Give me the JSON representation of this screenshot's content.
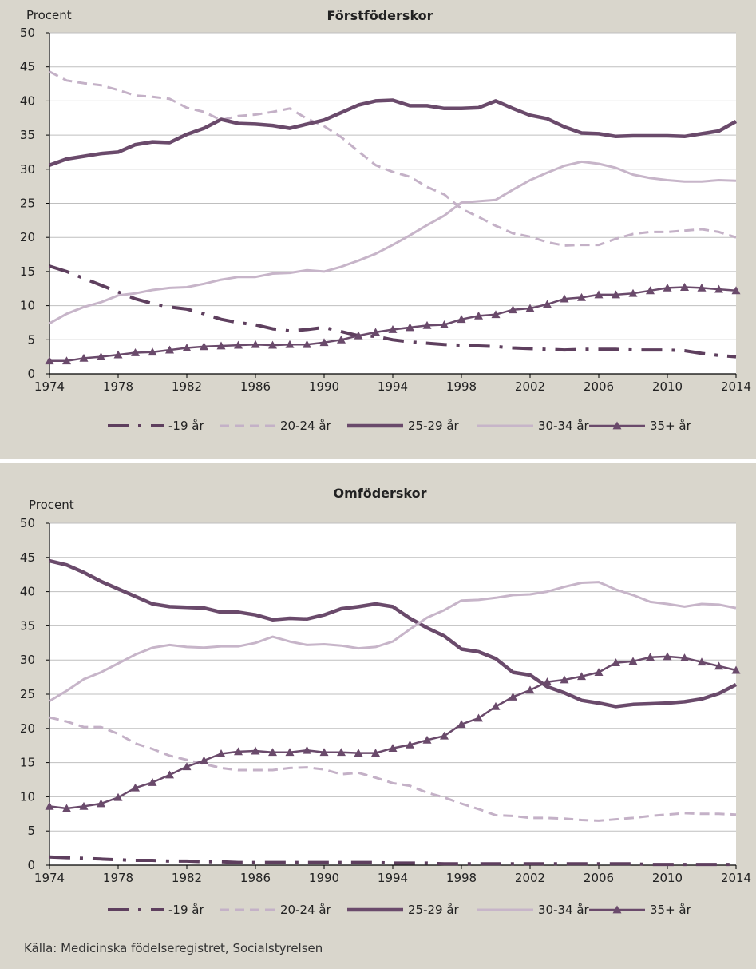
{
  "colors": {
    "s19": "#5e3f5e",
    "s2024": "#c4b1c7",
    "s2529": "#6a4a6b",
    "s3034": "#c7b5c9",
    "s35": "#6a4a6b",
    "grid": "#bfbfbf",
    "axis": "#000000",
    "plot_bg": "#ffffff",
    "panel_bg": "#d9d6cc"
  },
  "source": "Källa: Medicinska födelseregistret, Socialstyrelsen",
  "chart_data": [
    {
      "type": "line",
      "title": "Förstföderskor",
      "ylabel": "Procent",
      "xlim": [
        1974,
        2014
      ],
      "ylim": [
        0,
        50
      ],
      "x_ticks": [
        "1974",
        "1978",
        "1982",
        "1986",
        "1990",
        "1994",
        "1998",
        "2002",
        "2006",
        "2010",
        "2014"
      ],
      "y_ticks": [
        "0",
        "5",
        "10",
        "15",
        "20",
        "25",
        "30",
        "35",
        "40",
        "45",
        "50"
      ],
      "grid": true,
      "legend_position": "bottom",
      "x": [
        1974,
        1975,
        1976,
        1977,
        1978,
        1979,
        1980,
        1981,
        1982,
        1983,
        1984,
        1985,
        1986,
        1987,
        1988,
        1989,
        1990,
        1991,
        1992,
        1993,
        1994,
        1995,
        1996,
        1997,
        1998,
        1999,
        2000,
        2001,
        2002,
        2003,
        2004,
        2005,
        2006,
        2007,
        2008,
        2009,
        2010,
        2011,
        2012,
        2013,
        2014
      ],
      "series": [
        {
          "name": "-19 år",
          "style": "dashdot",
          "color_key": "s19",
          "values": [
            15.8,
            15.0,
            14.0,
            13.0,
            12.0,
            11.0,
            10.3,
            9.8,
            9.5,
            8.8,
            8.0,
            7.5,
            7.2,
            6.6,
            6.3,
            6.5,
            6.8,
            6.2,
            5.6,
            5.5,
            5.0,
            4.7,
            4.5,
            4.3,
            4.2,
            4.1,
            4.0,
            3.8,
            3.7,
            3.6,
            3.5,
            3.6,
            3.6,
            3.6,
            3.5,
            3.5,
            3.5,
            3.4,
            3.0,
            2.7,
            2.5
          ]
        },
        {
          "name": "20-24 år",
          "style": "dashed",
          "color_key": "s2024",
          "values": [
            44.3,
            43.0,
            42.6,
            42.3,
            41.6,
            40.8,
            40.6,
            40.3,
            39.0,
            38.4,
            37.2,
            37.8,
            38.0,
            38.4,
            38.9,
            37.4,
            36.3,
            34.7,
            32.6,
            30.6,
            29.6,
            28.9,
            27.4,
            26.3,
            24.2,
            23.0,
            21.7,
            20.6,
            20.1,
            19.3,
            18.8,
            18.9,
            18.9,
            19.8,
            20.5,
            20.8,
            20.8,
            21.0,
            21.2,
            20.8,
            20.0
          ]
        },
        {
          "name": "25-29 år",
          "style": "solid-thick",
          "color_key": "s2529",
          "values": [
            30.6,
            31.5,
            31.9,
            32.3,
            32.5,
            33.6,
            34.0,
            33.9,
            35.1,
            36.0,
            37.3,
            36.7,
            36.6,
            36.4,
            36.0,
            36.6,
            37.2,
            38.3,
            39.4,
            40.0,
            40.1,
            39.3,
            39.3,
            38.9,
            38.9,
            39.0,
            40.0,
            38.9,
            37.9,
            37.4,
            36.2,
            35.3,
            35.2,
            34.8,
            34.9,
            34.9,
            34.9,
            34.8,
            35.2,
            35.6,
            37.0
          ]
        },
        {
          "name": "30-34 år",
          "style": "solid",
          "color_key": "s3034",
          "values": [
            7.4,
            8.8,
            9.8,
            10.5,
            11.5,
            11.8,
            12.3,
            12.6,
            12.7,
            13.2,
            13.8,
            14.2,
            14.2,
            14.7,
            14.8,
            15.2,
            15.0,
            15.7,
            16.6,
            17.6,
            18.9,
            20.3,
            21.8,
            23.2,
            25.1,
            25.3,
            25.5,
            27.0,
            28.4,
            29.5,
            30.5,
            31.1,
            30.8,
            30.2,
            29.2,
            28.7,
            28.4,
            28.2,
            28.2,
            28.4,
            28.3
          ]
        },
        {
          "name": "35+ år",
          "style": "triangle",
          "color_key": "s35",
          "values": [
            1.9,
            1.9,
            2.3,
            2.5,
            2.8,
            3.1,
            3.2,
            3.5,
            3.8,
            4.0,
            4.1,
            4.2,
            4.3,
            4.2,
            4.3,
            4.3,
            4.6,
            5.0,
            5.6,
            6.1,
            6.5,
            6.8,
            7.1,
            7.2,
            8.0,
            8.5,
            8.7,
            9.4,
            9.6,
            10.2,
            11.0,
            11.2,
            11.6,
            11.6,
            11.8,
            12.2,
            12.6,
            12.7,
            12.6,
            12.4,
            12.2
          ]
        }
      ]
    },
    {
      "type": "line",
      "title": "Omföderskor",
      "ylabel": "Procent",
      "xlim": [
        1974,
        2014
      ],
      "ylim": [
        0,
        50
      ],
      "x_ticks": [
        "1974",
        "1978",
        "1982",
        "1986",
        "1990",
        "1994",
        "1998",
        "2002",
        "2006",
        "2010",
        "2014"
      ],
      "y_ticks": [
        "0",
        "5",
        "10",
        "15",
        "20",
        "25",
        "30",
        "35",
        "40",
        "45",
        "50"
      ],
      "grid": true,
      "legend_position": "bottom",
      "x": [
        1974,
        1975,
        1976,
        1977,
        1978,
        1979,
        1980,
        1981,
        1982,
        1983,
        1984,
        1985,
        1986,
        1987,
        1988,
        1989,
        1990,
        1991,
        1992,
        1993,
        1994,
        1995,
        1996,
        1997,
        1998,
        1999,
        2000,
        2001,
        2002,
        2003,
        2004,
        2005,
        2006,
        2007,
        2008,
        2009,
        2010,
        2011,
        2012,
        2013,
        2014
      ],
      "series": [
        {
          "name": "-19 år",
          "style": "dashdot",
          "color_key": "s19",
          "values": [
            1.2,
            1.1,
            1.0,
            0.9,
            0.8,
            0.7,
            0.7,
            0.6,
            0.6,
            0.5,
            0.5,
            0.4,
            0.4,
            0.4,
            0.4,
            0.4,
            0.4,
            0.4,
            0.4,
            0.4,
            0.3,
            0.3,
            0.3,
            0.2,
            0.2,
            0.2,
            0.2,
            0.2,
            0.2,
            0.2,
            0.2,
            0.2,
            0.2,
            0.2,
            0.2,
            0.1,
            0.1,
            0.1,
            0.1,
            0.1,
            0.1
          ]
        },
        {
          "name": "20-24 år",
          "style": "dashed",
          "color_key": "s2024",
          "values": [
            21.6,
            21.0,
            20.2,
            20.2,
            19.2,
            17.8,
            17.0,
            16.0,
            15.4,
            14.8,
            14.2,
            13.9,
            13.9,
            13.9,
            14.2,
            14.3,
            14.0,
            13.3,
            13.5,
            12.8,
            12.0,
            11.6,
            10.6,
            9.9,
            9.0,
            8.2,
            7.3,
            7.2,
            6.9,
            6.9,
            6.8,
            6.6,
            6.5,
            6.7,
            6.9,
            7.2,
            7.4,
            7.6,
            7.5,
            7.5,
            7.4
          ]
        },
        {
          "name": "25-29 år",
          "style": "solid-thick",
          "color_key": "s2529",
          "values": [
            44.5,
            43.9,
            42.8,
            41.5,
            40.4,
            39.3,
            38.2,
            37.8,
            37.7,
            37.6,
            37.0,
            37.0,
            36.6,
            35.9,
            36.1,
            36.0,
            36.6,
            37.5,
            37.8,
            38.2,
            37.8,
            36.1,
            34.7,
            33.5,
            31.6,
            31.2,
            30.2,
            28.2,
            27.8,
            26.1,
            25.2,
            24.1,
            23.7,
            23.2,
            23.5,
            23.6,
            23.7,
            23.9,
            24.3,
            25.1,
            26.4
          ]
        },
        {
          "name": "30-34 år",
          "style": "solid",
          "color_key": "s3034",
          "values": [
            24.0,
            25.5,
            27.2,
            28.2,
            29.5,
            30.8,
            31.8,
            32.2,
            31.9,
            31.8,
            32.0,
            32.0,
            32.5,
            33.4,
            32.7,
            32.2,
            32.3,
            32.1,
            31.7,
            31.9,
            32.7,
            34.5,
            36.2,
            37.3,
            38.7,
            38.8,
            39.1,
            39.5,
            39.6,
            40.0,
            40.7,
            41.3,
            41.4,
            40.3,
            39.5,
            38.5,
            38.2,
            37.8,
            38.2,
            38.1,
            37.6
          ]
        },
        {
          "name": "35+ år",
          "style": "triangle",
          "color_key": "s35",
          "values": [
            8.6,
            8.3,
            8.6,
            9.0,
            9.9,
            11.3,
            12.1,
            13.2,
            14.4,
            15.3,
            16.3,
            16.6,
            16.7,
            16.5,
            16.5,
            16.8,
            16.5,
            16.5,
            16.4,
            16.4,
            17.1,
            17.6,
            18.3,
            18.9,
            20.6,
            21.5,
            23.2,
            24.6,
            25.6,
            26.8,
            27.1,
            27.6,
            28.2,
            29.6,
            29.8,
            30.4,
            30.5,
            30.3,
            29.7,
            29.1,
            28.5
          ]
        }
      ]
    }
  ]
}
